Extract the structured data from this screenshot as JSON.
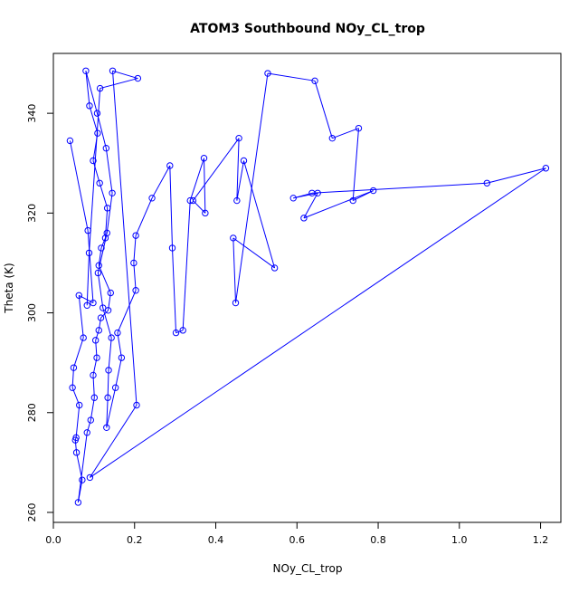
{
  "chart_data": {
    "type": "line",
    "title": "ATOM3 Southbound NOy_CL_trop",
    "xlabel": "NOy_CL_trop",
    "ylabel": "Theta (K)",
    "xlim": [
      0,
      1.25
    ],
    "ylim": [
      258,
      352
    ],
    "xticks": [
      "0.0",
      "0.2",
      "0.4",
      "0.6",
      "0.8",
      "1.0",
      "1.2"
    ],
    "yticks": [
      "260",
      "280",
      "300",
      "320",
      "340"
    ],
    "series_color": "#0000ff",
    "markers": "open-circle",
    "grid": false,
    "series": [
      {
        "values": [
          {
            "x": 0.041,
            "y": 334.5
          },
          {
            "x": 0.085,
            "y": 316.5
          },
          {
            "x": 0.098,
            "y": 302.0
          },
          {
            "x": 0.063,
            "y": 303.5
          },
          {
            "x": 0.074,
            "y": 295.0
          },
          {
            "x": 0.05,
            "y": 289.0
          },
          {
            "x": 0.047,
            "y": 285.0
          },
          {
            "x": 0.064,
            "y": 281.5
          },
          {
            "x": 0.056,
            "y": 275.0
          },
          {
            "x": 0.054,
            "y": 274.5
          },
          {
            "x": 0.057,
            "y": 272.0
          },
          {
            "x": 0.071,
            "y": 266.5
          },
          {
            "x": 0.061,
            "y": 262.0
          },
          {
            "x": 0.083,
            "y": 276.0
          },
          {
            "x": 0.092,
            "y": 278.5
          },
          {
            "x": 0.101,
            "y": 283.0
          },
          {
            "x": 0.098,
            "y": 287.5
          },
          {
            "x": 0.107,
            "y": 291.0
          },
          {
            "x": 0.104,
            "y": 294.5
          },
          {
            "x": 0.112,
            "y": 296.5
          },
          {
            "x": 0.117,
            "y": 299.0
          },
          {
            "x": 0.135,
            "y": 300.5
          },
          {
            "x": 0.141,
            "y": 304.0
          },
          {
            "x": 0.112,
            "y": 309.5
          },
          {
            "x": 0.118,
            "y": 313.0
          },
          {
            "x": 0.128,
            "y": 315.0
          },
          {
            "x": 0.133,
            "y": 321.0
          },
          {
            "x": 0.114,
            "y": 326.0
          },
          {
            "x": 0.098,
            "y": 330.5
          },
          {
            "x": 0.109,
            "y": 336.0
          },
          {
            "x": 0.089,
            "y": 341.5
          },
          {
            "x": 0.08,
            "y": 348.5
          },
          {
            "x": 0.108,
            "y": 340.0
          },
          {
            "x": 0.13,
            "y": 333.0
          },
          {
            "x": 0.145,
            "y": 324.0
          },
          {
            "x": 0.132,
            "y": 316.0
          },
          {
            "x": 0.11,
            "y": 308.0
          },
          {
            "x": 0.122,
            "y": 301.0
          },
          {
            "x": 0.143,
            "y": 295.0
          },
          {
            "x": 0.136,
            "y": 288.5
          },
          {
            "x": 0.134,
            "y": 283.0
          },
          {
            "x": 0.131,
            "y": 277.0
          },
          {
            "x": 0.153,
            "y": 285.0
          },
          {
            "x": 0.168,
            "y": 291.0
          },
          {
            "x": 0.158,
            "y": 296.0
          },
          {
            "x": 0.203,
            "y": 304.5
          },
          {
            "x": 0.198,
            "y": 310.0
          },
          {
            "x": 0.203,
            "y": 315.5
          },
          {
            "x": 0.243,
            "y": 323.0
          },
          {
            "x": 0.287,
            "y": 329.5
          },
          {
            "x": 0.293,
            "y": 313.0
          },
          {
            "x": 0.302,
            "y": 296.0
          },
          {
            "x": 0.319,
            "y": 296.5
          },
          {
            "x": 0.337,
            "y": 322.5
          },
          {
            "x": 0.371,
            "y": 331.0
          },
          {
            "x": 0.374,
            "y": 320.0
          },
          {
            "x": 0.344,
            "y": 322.5
          },
          {
            "x": 0.457,
            "y": 335.0
          },
          {
            "x": 0.452,
            "y": 322.5
          },
          {
            "x": 0.469,
            "y": 330.5
          },
          {
            "x": 0.545,
            "y": 309.0
          },
          {
            "x": 0.443,
            "y": 315.0
          },
          {
            "x": 0.449,
            "y": 302.0
          },
          {
            "x": 0.528,
            "y": 348.0
          },
          {
            "x": 0.644,
            "y": 346.5
          },
          {
            "x": 0.687,
            "y": 335.0
          },
          {
            "x": 0.752,
            "y": 337.0
          },
          {
            "x": 0.738,
            "y": 322.5
          },
          {
            "x": 0.788,
            "y": 324.5
          },
          {
            "x": 0.617,
            "y": 319.0
          },
          {
            "x": 0.651,
            "y": 324.0
          },
          {
            "x": 0.591,
            "y": 323.0
          },
          {
            "x": 0.637,
            "y": 324.0
          },
          {
            "x": 1.068,
            "y": 326.0
          },
          {
            "x": 1.213,
            "y": 329.0
          },
          {
            "x": 0.09,
            "y": 267.0
          },
          {
            "x": 0.205,
            "y": 281.5
          },
          {
            "x": 0.146,
            "y": 348.5
          },
          {
            "x": 0.208,
            "y": 347.0
          },
          {
            "x": 0.115,
            "y": 345.0
          },
          {
            "x": 0.088,
            "y": 312.0
          },
          {
            "x": 0.083,
            "y": 301.5
          }
        ]
      }
    ]
  }
}
